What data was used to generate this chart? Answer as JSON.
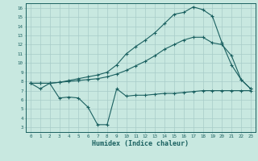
{
  "xlabel": "Humidex (Indice chaleur)",
  "bg_color": "#c8e8e0",
  "grid_color": "#a8ccc8",
  "line_color": "#1a6060",
  "xlim": [
    -0.5,
    23.5
  ],
  "ylim": [
    2.5,
    16.5
  ],
  "xticks": [
    0,
    1,
    2,
    3,
    4,
    5,
    6,
    7,
    8,
    9,
    10,
    11,
    12,
    13,
    14,
    15,
    16,
    17,
    18,
    19,
    20,
    21,
    22,
    23
  ],
  "yticks": [
    3,
    4,
    5,
    6,
    7,
    8,
    9,
    10,
    11,
    12,
    13,
    14,
    15,
    16
  ],
  "line1_x": [
    0,
    1,
    2,
    3,
    4,
    5,
    6,
    7,
    8,
    9,
    10,
    11,
    12,
    13,
    14,
    15,
    16,
    17,
    18,
    19,
    20,
    21,
    22,
    23
  ],
  "line1_y": [
    7.8,
    7.2,
    7.8,
    6.2,
    6.3,
    6.2,
    5.2,
    3.3,
    3.3,
    7.2,
    6.4,
    6.5,
    6.5,
    6.6,
    6.7,
    6.7,
    6.8,
    6.9,
    7.0,
    7.0,
    7.0,
    7.0,
    7.0,
    7.0
  ],
  "line2_x": [
    0,
    1,
    2,
    3,
    4,
    5,
    6,
    7,
    8,
    9,
    10,
    11,
    12,
    13,
    14,
    15,
    16,
    17,
    18,
    19,
    20,
    21,
    22,
    23
  ],
  "line2_y": [
    7.8,
    7.8,
    7.8,
    7.9,
    8.1,
    8.3,
    8.5,
    8.7,
    9.0,
    9.8,
    11.0,
    11.8,
    12.5,
    13.3,
    14.3,
    15.3,
    15.5,
    16.1,
    15.8,
    15.1,
    12.2,
    9.8,
    8.2,
    7.2
  ],
  "line3_x": [
    0,
    1,
    2,
    3,
    4,
    5,
    6,
    7,
    8,
    9,
    10,
    11,
    12,
    13,
    14,
    15,
    16,
    17,
    18,
    19,
    20,
    21,
    22,
    23
  ],
  "line3_y": [
    7.8,
    7.8,
    7.8,
    7.9,
    8.0,
    8.1,
    8.2,
    8.3,
    8.5,
    8.8,
    9.2,
    9.7,
    10.2,
    10.8,
    11.5,
    12.0,
    12.5,
    12.8,
    12.8,
    12.2,
    12.0,
    10.8,
    8.2,
    7.2
  ]
}
